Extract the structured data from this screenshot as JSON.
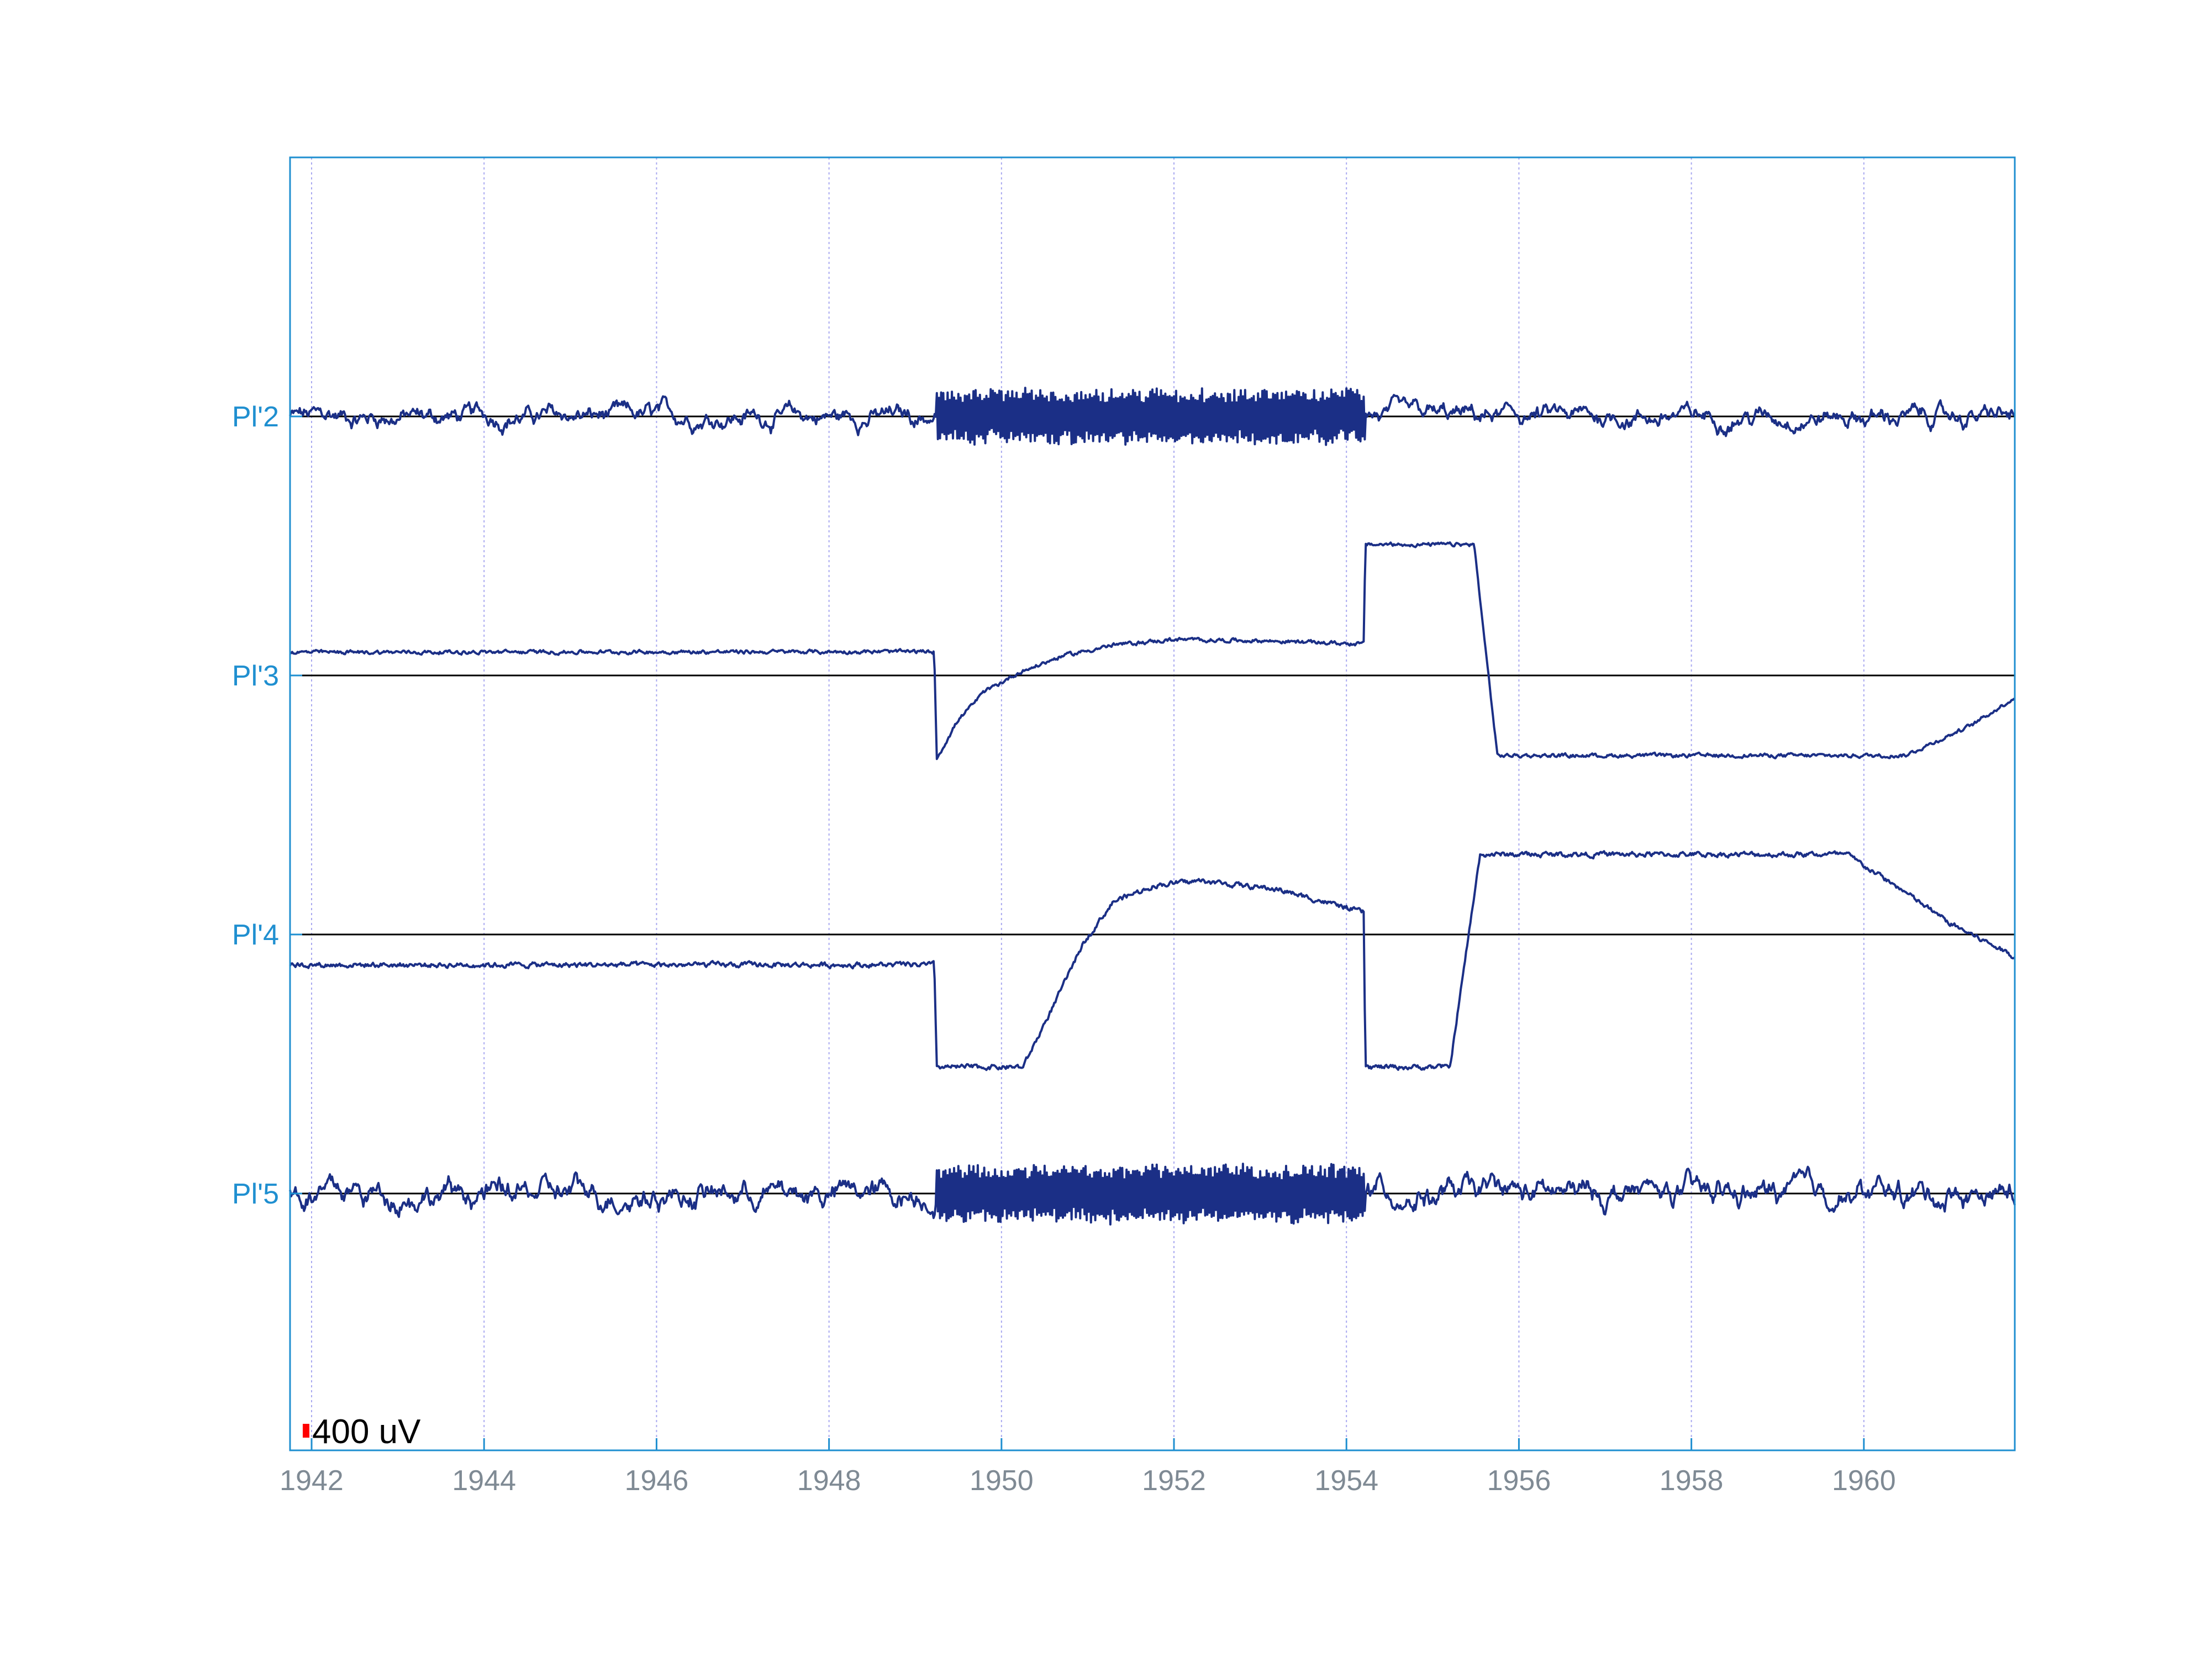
{
  "chart_data": {
    "type": "line",
    "title": "",
    "xlabel": "",
    "ylabel": "",
    "xlim": [
      1941.75,
      1961.75
    ],
    "xticks": [
      1942,
      1944,
      1946,
      1948,
      1950,
      1952,
      1954,
      1956,
      1958,
      1960
    ],
    "grid": true,
    "scale_bar": {
      "label": "400 uV",
      "color": "#ff0000"
    },
    "colors": {
      "trace": "#1b2f86",
      "axis": "#1f8fd0",
      "grid": "#a9a9f0",
      "baseline": "#000000",
      "xtick_text": "#7f8a94"
    },
    "channels": [
      {
        "name": "Pl'2",
        "noise": 14,
        "wave_noise": 28,
        "burst": [
          1949.25,
          1954.22
        ],
        "burst_amp": 48,
        "points": [
          [
            1941.75,
            0
          ],
          [
            1961.75,
            0
          ]
        ]
      },
      {
        "name": "Pl'3",
        "noise": 9,
        "wave_noise": 0,
        "points": [
          [
            1941.75,
            42
          ],
          [
            1949.22,
            43
          ],
          [
            1949.25,
            -150
          ],
          [
            1949.5,
            -80
          ],
          [
            1949.8,
            -30
          ],
          [
            1950.2,
            5
          ],
          [
            1950.7,
            35
          ],
          [
            1951.3,
            55
          ],
          [
            1952.0,
            65
          ],
          [
            1953.0,
            63
          ],
          [
            1954.2,
            57
          ],
          [
            1954.22,
            237
          ],
          [
            1955.48,
            237
          ],
          [
            1955.75,
            -145
          ],
          [
            1960.48,
            -145
          ],
          [
            1961.25,
            -90
          ],
          [
            1961.75,
            -40
          ]
        ]
      },
      {
        "name": "Pl'4",
        "noise": 12,
        "wave_noise": 0,
        "points": [
          [
            1941.75,
            -55
          ],
          [
            1949.22,
            -55
          ],
          [
            1949.25,
            -240
          ],
          [
            1950.25,
            -240
          ],
          [
            1950.6,
            -130
          ],
          [
            1950.95,
            -15
          ],
          [
            1951.3,
            60
          ],
          [
            1951.8,
            90
          ],
          [
            1952.3,
            97
          ],
          [
            1953.2,
            82
          ],
          [
            1954.2,
            40
          ],
          [
            1954.22,
            -240
          ],
          [
            1955.2,
            -240
          ],
          [
            1955.55,
            145
          ],
          [
            1959.8,
            145
          ],
          [
            1960.4,
            85
          ],
          [
            1961.0,
            20
          ],
          [
            1961.75,
            -40
          ]
        ]
      },
      {
        "name": "Pl'5",
        "noise": 14,
        "wave_noise": 40,
        "burst": [
          1949.25,
          1954.22
        ],
        "burst_amp": 50,
        "points": [
          [
            1941.75,
            0
          ],
          [
            1961.75,
            0
          ]
        ]
      }
    ]
  }
}
